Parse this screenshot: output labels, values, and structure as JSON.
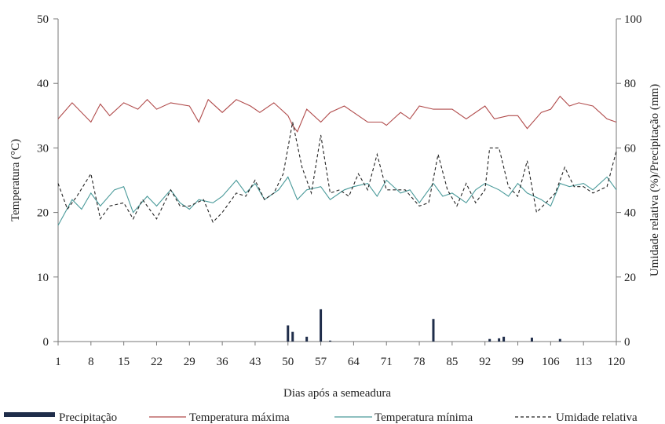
{
  "chart_data": {
    "type": "line",
    "xlabel": "Dias após a semeadura",
    "ylabel_left": "Temperatura (°C)",
    "ylabel_right": "Umidade relativa (%)/Precipitação (mm)",
    "x_ticks": [
      1,
      8,
      15,
      22,
      29,
      36,
      43,
      50,
      57,
      64,
      71,
      78,
      85,
      92,
      99,
      106,
      113,
      120
    ],
    "xlim": [
      1,
      120
    ],
    "ylim_left": [
      0,
      50
    ],
    "yticks_left": [
      0,
      10,
      20,
      30,
      40,
      50
    ],
    "ylim_right": [
      0,
      100
    ],
    "yticks_right": [
      0,
      20,
      40,
      60,
      80,
      100
    ],
    "legend": [
      "Precipitação",
      "Temperatura máxima",
      "Temperatura mínima",
      "Umidade relativa"
    ],
    "colors": {
      "precipitation": "#1f2d4a",
      "tmax": "#b04a4a",
      "tmin": "#4a9a9a",
      "humidity": "#222222"
    },
    "series": [
      {
        "name": "Temperatura máxima",
        "axis": "left",
        "x": [
          1,
          4,
          8,
          10,
          12,
          15,
          18,
          20,
          22,
          25,
          29,
          31,
          33,
          36,
          39,
          42,
          44,
          47,
          50,
          51,
          52,
          54,
          57,
          59,
          62,
          64,
          67,
          70,
          71,
          74,
          76,
          78,
          81,
          85,
          88,
          92,
          94,
          97,
          99,
          101,
          104,
          106,
          108,
          110,
          112,
          115,
          118,
          120
        ],
        "values": [
          34.5,
          37,
          34,
          36.8,
          35,
          37,
          36,
          37.5,
          36,
          37,
          36.5,
          34,
          37.5,
          35.5,
          37.5,
          36.5,
          35.5,
          37,
          35,
          33.5,
          32.5,
          36,
          34,
          35.5,
          36.5,
          35.5,
          34,
          34,
          33.5,
          35.5,
          34.5,
          36.5,
          36,
          36,
          34.5,
          36.5,
          34.5,
          35,
          35,
          33,
          35.5,
          36,
          38,
          36.5,
          37,
          36.5,
          34.5,
          34
        ]
      },
      {
        "name": "Temperatura mínima",
        "axis": "left",
        "x": [
          1,
          4,
          6,
          8,
          10,
          13,
          15,
          17,
          20,
          22,
          25,
          27,
          29,
          31,
          34,
          36,
          39,
          41,
          43,
          45,
          48,
          50,
          52,
          54,
          57,
          59,
          62,
          64,
          67,
          69,
          71,
          74,
          76,
          78,
          81,
          83,
          85,
          88,
          90,
          92,
          95,
          97,
          99,
          101,
          104,
          106,
          108,
          110,
          113,
          115,
          118,
          120
        ],
        "values": [
          18,
          22,
          20.5,
          23,
          21,
          23.5,
          24,
          20,
          22.5,
          21,
          23.5,
          21.5,
          20.5,
          22,
          21.5,
          22.5,
          25,
          23,
          24.5,
          22,
          23.5,
          25.5,
          22,
          23.5,
          24,
          22,
          23.5,
          24,
          24.5,
          22.5,
          25,
          23,
          23.5,
          21.5,
          24.5,
          22.5,
          23,
          21.5,
          23.5,
          24.5,
          23.5,
          22.5,
          24.5,
          23,
          22,
          21,
          24.5,
          24,
          24.5,
          23.5,
          25.5,
          23.5
        ]
      },
      {
        "name": "Umidade relativa",
        "axis": "right",
        "x": [
          1,
          3,
          5,
          8,
          10,
          12,
          15,
          17,
          19,
          22,
          25,
          27,
          29,
          32,
          34,
          36,
          39,
          41,
          43,
          45,
          47,
          49,
          51,
          53,
          55,
          57,
          59,
          61,
          63,
          65,
          67,
          69,
          71,
          73,
          75,
          78,
          80,
          82,
          84,
          86,
          88,
          90,
          92,
          93,
          95,
          97,
          99,
          101,
          103,
          105,
          107,
          109,
          111,
          113,
          115,
          118,
          120
        ],
        "values": [
          49,
          41,
          45,
          52,
          38,
          42,
          43,
          38,
          44,
          38,
          47,
          42,
          42,
          44,
          37,
          40,
          46,
          45,
          50,
          44,
          46,
          52,
          68,
          54,
          46,
          64,
          46,
          47,
          45,
          52,
          47,
          58,
          47,
          47,
          47,
          42,
          43,
          58,
          47,
          42,
          49,
          43,
          47,
          60,
          60,
          48,
          45,
          56,
          40,
          43,
          46,
          54,
          48,
          48,
          46,
          48,
          59
        ]
      }
    ],
    "precipitation": {
      "name": "Precipitação",
      "axis": "right",
      "x": [
        50,
        51,
        54,
        57,
        59,
        81,
        93,
        95,
        96,
        102,
        108
      ],
      "values": [
        5,
        3,
        1.5,
        10,
        0.3,
        7,
        0.8,
        1,
        1.5,
        1.2,
        0.8
      ]
    }
  }
}
